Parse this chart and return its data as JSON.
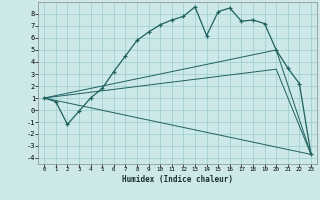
{
  "title": "",
  "xlabel": "Humidex (Indice chaleur)",
  "xlim": [
    -0.5,
    23.5
  ],
  "ylim": [
    -4.5,
    9.0
  ],
  "background_color": "#cce8e8",
  "grid_color": "#99cccc",
  "line_color": "#206060",
  "line1_x": [
    0,
    1,
    2,
    3,
    4,
    5,
    6,
    7,
    8,
    9,
    10,
    11,
    12,
    13,
    14,
    15,
    16,
    17,
    18,
    19,
    20,
    21,
    22,
    23
  ],
  "line1_y": [
    1.0,
    0.7,
    -1.2,
    -0.1,
    1.0,
    1.8,
    3.2,
    4.5,
    5.8,
    6.5,
    7.1,
    7.5,
    7.8,
    8.6,
    6.2,
    8.2,
    8.5,
    7.4,
    7.5,
    7.2,
    5.0,
    3.5,
    2.2,
    -3.7
  ],
  "line2_x": [
    0,
    23
  ],
  "line2_y": [
    1.0,
    -3.7
  ],
  "line3_x": [
    0,
    20,
    23
  ],
  "line3_y": [
    1.0,
    5.0,
    -3.7
  ],
  "line4_x": [
    0,
    20,
    23
  ],
  "line4_y": [
    1.0,
    3.4,
    -3.7
  ],
  "xticks": [
    0,
    1,
    2,
    3,
    4,
    5,
    6,
    7,
    8,
    9,
    10,
    11,
    12,
    13,
    14,
    15,
    16,
    17,
    18,
    19,
    20,
    21,
    22,
    23
  ],
  "yticks": [
    -4,
    -3,
    -2,
    -1,
    0,
    1,
    2,
    3,
    4,
    5,
    6,
    7,
    8
  ]
}
